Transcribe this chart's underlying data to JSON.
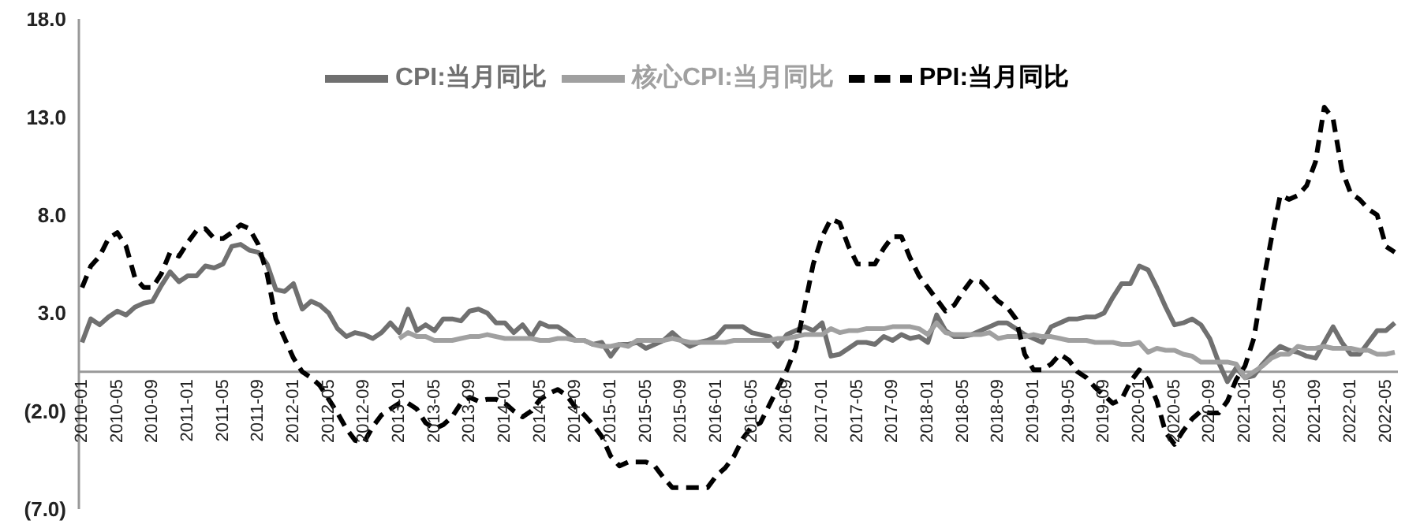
{
  "chart_data": {
    "type": "line",
    "categories": [
      "2010-01",
      null,
      null,
      null,
      "2010-05",
      null,
      null,
      null,
      "2010-09",
      null,
      null,
      null,
      "2011-01",
      null,
      null,
      null,
      "2011-05",
      null,
      null,
      null,
      "2011-09",
      null,
      null,
      null,
      "2012-01",
      null,
      null,
      null,
      "2012-05",
      null,
      null,
      null,
      "2012-09",
      null,
      null,
      null,
      "2013-01",
      null,
      null,
      null,
      "2013-05",
      null,
      null,
      null,
      "2013-09",
      null,
      null,
      null,
      "2014-01",
      null,
      null,
      null,
      "2014-05",
      null,
      null,
      null,
      "2014-09",
      null,
      null,
      null,
      "2015-01",
      null,
      null,
      null,
      "2015-05",
      null,
      null,
      null,
      "2015-09",
      null,
      null,
      null,
      "2016-01",
      null,
      null,
      null,
      "2016-05",
      null,
      null,
      null,
      "2016-09",
      null,
      null,
      null,
      "2017-01",
      null,
      null,
      null,
      "2017-05",
      null,
      null,
      null,
      "2017-09",
      null,
      null,
      null,
      "2018-01",
      null,
      null,
      null,
      "2018-05",
      null,
      null,
      null,
      "2018-09",
      null,
      null,
      null,
      "2019-01",
      null,
      null,
      null,
      "2019-05",
      null,
      null,
      null,
      "2019-09",
      null,
      null,
      null,
      "2020-01",
      null,
      null,
      null,
      "2020-05",
      null,
      null,
      null,
      "2020-09",
      null,
      null,
      null,
      "2021-01",
      null,
      null,
      null,
      "2021-05",
      null,
      null,
      null,
      "2021-09",
      null,
      null,
      null,
      "2022-01",
      null,
      null,
      null,
      "2022-05",
      null
    ],
    "series": [
      {
        "name": "CPI:当月同比",
        "color": "#707070",
        "line_style": "solid",
        "values": [
          1.5,
          2.7,
          2.4,
          2.8,
          3.1,
          2.9,
          3.3,
          3.5,
          3.6,
          4.4,
          5.1,
          4.6,
          4.9,
          4.9,
          5.4,
          5.3,
          5.5,
          6.4,
          6.5,
          6.2,
          6.1,
          5.5,
          4.2,
          4.1,
          4.5,
          3.2,
          3.6,
          3.4,
          3.0,
          2.2,
          1.8,
          2.0,
          1.9,
          1.7,
          2.0,
          2.5,
          2.0,
          3.2,
          2.1,
          2.4,
          2.1,
          2.7,
          2.7,
          2.6,
          3.1,
          3.2,
          3.0,
          2.5,
          2.5,
          2.0,
          2.4,
          1.8,
          2.5,
          2.3,
          2.3,
          2.0,
          1.6,
          1.6,
          1.4,
          1.5,
          0.8,
          1.4,
          1.4,
          1.5,
          1.2,
          1.4,
          1.6,
          2.0,
          1.6,
          1.3,
          1.5,
          1.6,
          1.8,
          2.3,
          2.3,
          2.3,
          2.0,
          1.9,
          1.8,
          1.3,
          1.9,
          2.1,
          2.3,
          2.1,
          2.5,
          0.8,
          0.9,
          1.2,
          1.5,
          1.5,
          1.4,
          1.8,
          1.6,
          1.9,
          1.7,
          1.8,
          1.5,
          2.9,
          2.1,
          1.8,
          1.8,
          1.9,
          2.1,
          2.3,
          2.5,
          2.5,
          2.2,
          1.9,
          1.7,
          1.5,
          2.3,
          2.5,
          2.7,
          2.7,
          2.8,
          2.8,
          3.0,
          3.8,
          4.5,
          4.5,
          5.4,
          5.2,
          4.3,
          3.3,
          2.4,
          2.5,
          2.7,
          2.4,
          1.7,
          0.5,
          -0.5,
          0.2,
          -0.3,
          -0.2,
          0.4,
          0.9,
          1.3,
          1.1,
          1.0,
          0.8,
          0.7,
          1.5,
          2.3,
          1.5,
          0.9,
          0.9,
          1.5,
          2.1,
          2.1,
          2.5
        ]
      },
      {
        "name": "核心CPI:当月同比",
        "color": "#a0a0a0",
        "line_style": "solid",
        "values": [
          null,
          null,
          null,
          null,
          null,
          null,
          null,
          null,
          null,
          null,
          null,
          null,
          null,
          null,
          null,
          null,
          null,
          null,
          null,
          null,
          null,
          null,
          null,
          null,
          null,
          null,
          null,
          null,
          null,
          null,
          null,
          null,
          null,
          null,
          null,
          null,
          1.7,
          2.0,
          1.8,
          1.8,
          1.6,
          1.6,
          1.6,
          1.7,
          1.8,
          1.8,
          1.9,
          1.8,
          1.7,
          1.7,
          1.7,
          1.7,
          1.6,
          1.6,
          1.7,
          1.7,
          1.6,
          1.6,
          1.4,
          1.3,
          1.3,
          1.4,
          1.3,
          1.6,
          1.6,
          1.6,
          1.6,
          1.7,
          1.6,
          1.5,
          1.5,
          1.5,
          1.5,
          1.5,
          1.6,
          1.6,
          1.6,
          1.6,
          1.6,
          1.7,
          1.7,
          1.8,
          1.9,
          1.9,
          1.9,
          2.2,
          2.0,
          2.1,
          2.1,
          2.2,
          2.2,
          2.2,
          2.3,
          2.3,
          2.3,
          2.2,
          1.9,
          2.5,
          2.0,
          1.9,
          1.9,
          1.9,
          1.9,
          2.0,
          1.7,
          1.8,
          1.8,
          1.8,
          1.9,
          1.8,
          1.8,
          1.7,
          1.6,
          1.6,
          1.6,
          1.5,
          1.5,
          1.5,
          1.4,
          1.4,
          1.5,
          1.0,
          1.2,
          1.1,
          1.1,
          0.9,
          0.8,
          0.5,
          0.5,
          0.5,
          0.5,
          0.4,
          -0.3,
          0.0,
          0.3,
          0.7,
          0.9,
          0.9,
          1.3,
          1.2,
          1.2,
          1.3,
          1.2,
          1.2,
          1.2,
          1.1,
          1.1,
          0.9,
          0.9,
          1.0
        ]
      },
      {
        "name": "PPI:当月同比",
        "color": "#000000",
        "line_style": "dashed",
        "values": [
          4.3,
          5.4,
          5.9,
          6.8,
          7.1,
          6.4,
          4.8,
          4.3,
          4.3,
          5.0,
          6.1,
          5.9,
          6.6,
          7.2,
          7.3,
          6.8,
          6.8,
          7.1,
          7.5,
          7.3,
          6.5,
          5.0,
          2.7,
          1.7,
          0.7,
          0.0,
          -0.3,
          -0.7,
          -1.4,
          -2.1,
          -2.9,
          -3.5,
          -3.6,
          -2.8,
          -2.2,
          -1.9,
          -1.6,
          -1.6,
          -1.9,
          -2.6,
          -2.9,
          -2.7,
          -2.3,
          -1.6,
          -1.3,
          -1.5,
          -1.4,
          -1.4,
          -1.6,
          -2.0,
          -2.3,
          -2.0,
          -1.4,
          -1.1,
          -0.9,
          -1.2,
          -1.8,
          -2.2,
          -2.7,
          -3.3,
          -4.3,
          -4.8,
          -4.6,
          -4.6,
          -4.6,
          -4.8,
          -5.4,
          -5.9,
          -5.9,
          -5.9,
          -5.9,
          -5.9,
          -5.3,
          -4.9,
          -4.3,
          -3.4,
          -2.8,
          -2.6,
          -1.7,
          -0.8,
          0.1,
          1.2,
          3.3,
          5.5,
          6.9,
          7.8,
          7.6,
          6.4,
          5.5,
          5.5,
          5.5,
          6.3,
          6.9,
          6.9,
          5.8,
          4.9,
          4.3,
          3.7,
          3.1,
          3.4,
          4.1,
          4.7,
          4.6,
          4.1,
          3.6,
          3.3,
          2.7,
          0.9,
          0.1,
          0.1,
          0.4,
          0.9,
          0.6,
          0.0,
          -0.3,
          -0.8,
          -1.2,
          -1.6,
          -1.4,
          -0.5,
          0.1,
          -0.4,
          -1.5,
          -3.1,
          -3.7,
          -3.0,
          -2.4,
          -2.0,
          -2.1,
          -2.1,
          -1.5,
          -0.4,
          0.3,
          1.7,
          4.4,
          6.8,
          9.0,
          8.8,
          9.0,
          9.5,
          10.7,
          13.5,
          12.9,
          10.3,
          9.1,
          8.8,
          8.3,
          8.0,
          6.4,
          6.1
        ]
      }
    ],
    "ylim": [
      -7,
      18
    ],
    "yticks": [
      {
        "value": -7,
        "label": "(7.0)"
      },
      {
        "value": -2,
        "label": "(2.0)"
      },
      {
        "value": 3,
        "label": "3.0"
      },
      {
        "value": 8,
        "label": "8.0"
      },
      {
        "value": 13,
        "label": "13.0"
      },
      {
        "value": 18,
        "label": "18.0"
      }
    ],
    "grid": false,
    "legend": "top",
    "marker": "none"
  }
}
